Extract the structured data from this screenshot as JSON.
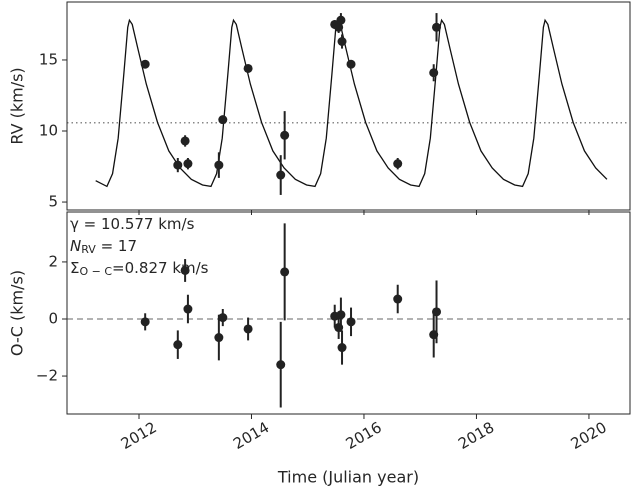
{
  "chart_data": [
    {
      "type": "errorbar",
      "ylabel": "RV (km/s)",
      "xlim": [
        2010.72,
        2020.73
      ],
      "xticks": [
        2012,
        2014,
        2016,
        2018,
        2020
      ],
      "xtick_labels": false,
      "ylim": [
        4.44,
        19.08
      ],
      "yticks": [
        5,
        10,
        15
      ],
      "hline": 10.577,
      "hline_style": "dotted",
      "hline_color": "#888888",
      "series": [
        {
          "type": "line",
          "color": "#111111",
          "x": [
            2011.23,
            2011.43,
            2011.53,
            2011.63,
            2011.73,
            2011.8,
            2011.83,
            2011.88,
            2011.98,
            2012.13,
            2012.33,
            2012.53,
            2012.73,
            2012.93,
            2013.13,
            2013.28,
            2013.38,
            2013.48,
            2013.58,
            2013.65,
            2013.68,
            2013.73,
            2013.83,
            2013.98,
            2014.18,
            2014.38,
            2014.58,
            2014.78,
            2014.98,
            2015.13,
            2015.23,
            2015.33,
            2015.43,
            2015.5,
            2015.53,
            2015.58,
            2015.68,
            2015.83,
            2016.03,
            2016.23,
            2016.43,
            2016.63,
            2016.83,
            2016.98,
            2017.08,
            2017.18,
            2017.28,
            2017.35,
            2017.38,
            2017.43,
            2017.53,
            2017.68,
            2017.88,
            2018.08,
            2018.28,
            2018.48,
            2018.68,
            2018.82,
            2018.92,
            2019.02,
            2019.12,
            2019.19,
            2019.22,
            2019.27,
            2019.37,
            2019.52,
            2019.72,
            2019.92,
            2020.12,
            2020.32
          ],
          "values": [
            6.5,
            6.1,
            7.0,
            9.5,
            14.0,
            17.3,
            17.8,
            17.5,
            15.8,
            13.3,
            10.6,
            8.6,
            7.4,
            6.6,
            6.2,
            6.1,
            7.0,
            9.5,
            14.0,
            17.3,
            17.8,
            17.5,
            15.8,
            13.3,
            10.6,
            8.6,
            7.4,
            6.6,
            6.2,
            6.1,
            7.0,
            9.5,
            14.0,
            17.3,
            17.8,
            17.5,
            15.8,
            13.3,
            10.6,
            8.6,
            7.4,
            6.6,
            6.2,
            6.1,
            7.0,
            9.5,
            14.0,
            17.3,
            17.8,
            17.5,
            15.8,
            13.3,
            10.6,
            8.6,
            7.4,
            6.6,
            6.2,
            6.1,
            7.0,
            9.5,
            14.0,
            17.3,
            17.8,
            17.5,
            15.8,
            13.3,
            10.6,
            8.6,
            7.4,
            6.6
          ]
        },
        {
          "type": "errorbar",
          "color": "#222222",
          "x": [
            2012.11,
            2012.69,
            2012.82,
            2012.87,
            2013.42,
            2013.49,
            2013.94,
            2014.52,
            2014.59,
            2015.48,
            2015.55,
            2015.59,
            2015.61,
            2015.77,
            2016.6,
            2017.24,
            2017.29
          ],
          "values": [
            14.7,
            7.6,
            9.3,
            7.7,
            7.6,
            10.8,
            14.4,
            6.9,
            9.7,
            17.5,
            17.3,
            17.8,
            16.3,
            14.7,
            7.7,
            14.1,
            17.3
          ],
          "errors": [
            0.2,
            0.5,
            0.4,
            0.4,
            0.9,
            0.2,
            0.2,
            1.4,
            1.7,
            0.3,
            0.4,
            0.5,
            0.5,
            0.3,
            0.4,
            0.6,
            1.0
          ]
        }
      ]
    },
    {
      "type": "errorbar",
      "ylabel": "O-C (km/s)",
      "xlabel": "Time (Julian year)",
      "xlim": [
        2010.72,
        2020.73
      ],
      "xticks": [
        2012,
        2014,
        2016,
        2018,
        2020
      ],
      "xtick_labels": true,
      "ylim": [
        -3.33,
        3.75
      ],
      "yticks": [
        {
          "value": -2,
          "label": "−2"
        },
        0,
        2
      ],
      "hline": 0,
      "hline_style": "dashed",
      "hline_color": "#999999",
      "annotations": [
        [
          "γ = 10.577 km/s"
        ],
        [
          "N",
          "RV",
          " = 17"
        ],
        [
          "Σ",
          "O − C",
          "=0.827 km/s"
        ]
      ],
      "series": [
        {
          "type": "errorbar",
          "color": "#222222",
          "x": [
            2012.11,
            2012.69,
            2012.82,
            2012.87,
            2013.42,
            2013.49,
            2013.94,
            2014.52,
            2014.59,
            2015.48,
            2015.55,
            2015.59,
            2015.61,
            2015.77,
            2016.6,
            2017.24,
            2017.29
          ],
          "values": [
            -0.1,
            -0.9,
            1.7,
            0.35,
            -0.65,
            0.05,
            -0.35,
            -1.6,
            1.65,
            0.1,
            -0.3,
            0.15,
            -1.0,
            -0.1,
            0.7,
            -0.55,
            0.25
          ],
          "errors": [
            0.3,
            0.5,
            0.4,
            0.5,
            0.8,
            0.3,
            0.4,
            1.5,
            1.7,
            0.4,
            0.4,
            0.6,
            0.6,
            0.5,
            0.5,
            0.8,
            1.1
          ]
        }
      ]
    }
  ]
}
